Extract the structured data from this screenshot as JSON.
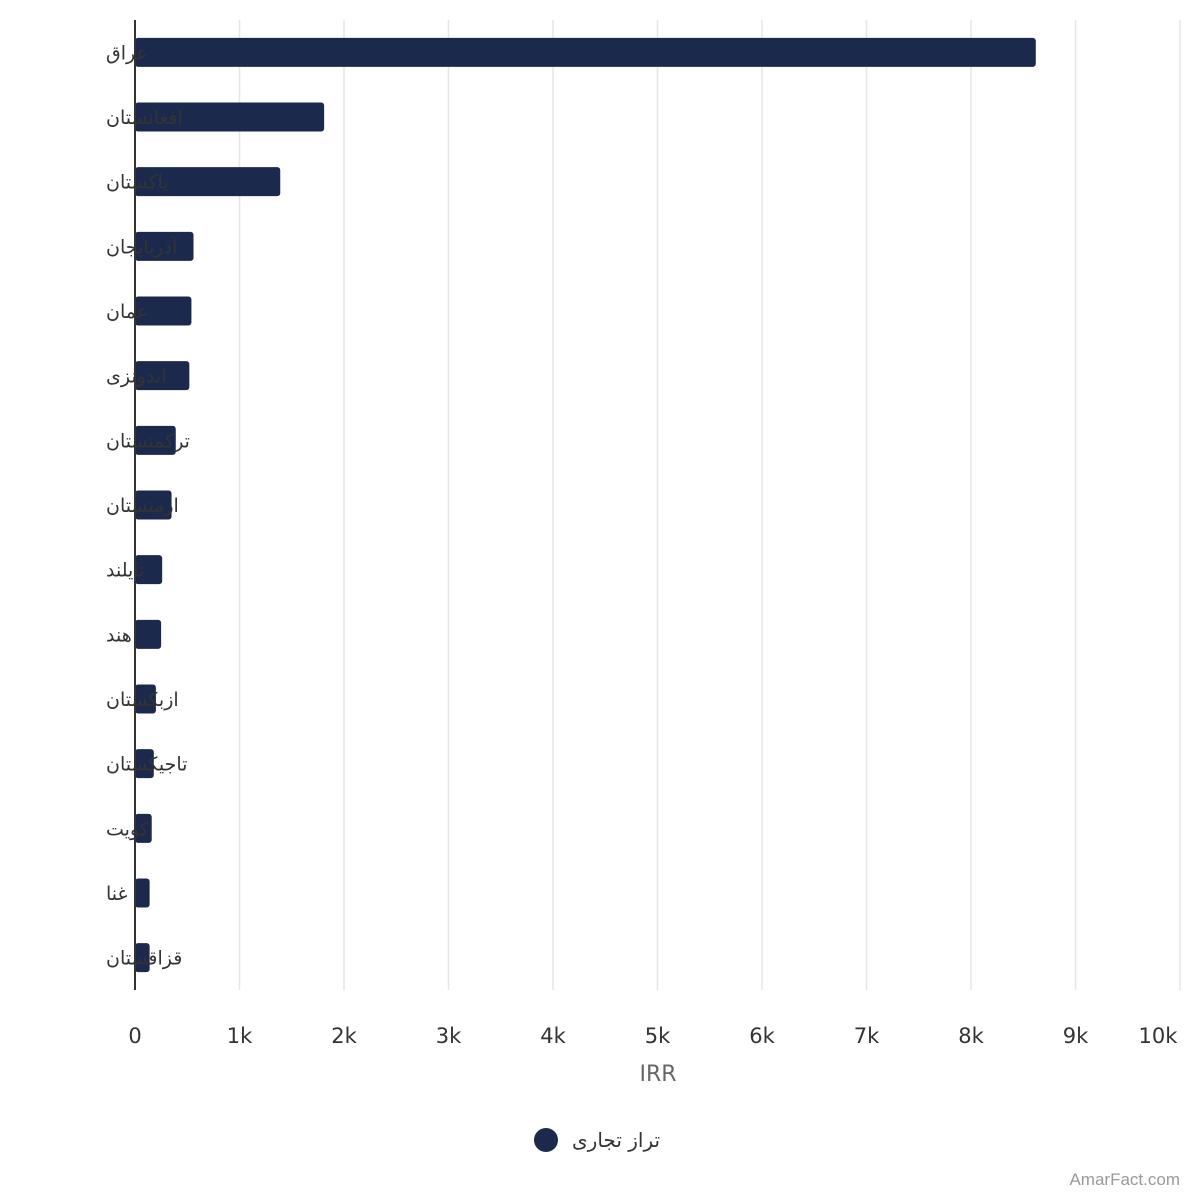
{
  "chart_data": {
    "type": "bar",
    "orientation": "horizontal",
    "categories": [
      "عراق",
      "افغانستان",
      "پاکستان",
      "آذربایجان",
      "عمان",
      "اندونزی",
      "ترکمنستان",
      "ارمنستان",
      "تایلند",
      "هند",
      "ازبکستان",
      "تاجیکستان",
      "کویت",
      "غنا",
      "قزاقستان"
    ],
    "series": [
      {
        "name": "تراز تجاری",
        "color": "#1b2a4c",
        "values": [
          8620,
          1810,
          1390,
          560,
          540,
          520,
          390,
          350,
          260,
          250,
          200,
          180,
          160,
          140,
          140
        ]
      }
    ],
    "xlim": [
      0,
      10000
    ],
    "xticks": [
      "0",
      "1k",
      "2k",
      "3k",
      "4k",
      "5k",
      "6k",
      "7k",
      "8k",
      "9k",
      "10k"
    ],
    "xlabel": "IRR",
    "ylabel": "",
    "grid": "vertical",
    "legend_position": "bottom-center"
  },
  "credit": "AmarFact.com"
}
